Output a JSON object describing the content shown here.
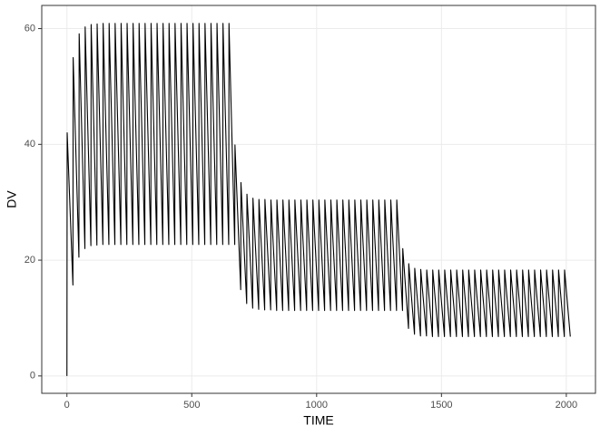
{
  "chart_data": {
    "type": "line",
    "x_label": "TIME",
    "y_label": "DV",
    "xlim": [
      -100.8,
      2116.8
    ],
    "ylim": [
      -3,
      64
    ],
    "xticks": [
      0,
      500,
      1000,
      1500,
      2000
    ],
    "yticks": [
      0,
      20,
      40,
      60
    ],
    "grid": true,
    "x": [
      0,
      1,
      24,
      25,
      48,
      49,
      72,
      73,
      96,
      97,
      120,
      121,
      144,
      145,
      168,
      169,
      192,
      193,
      216,
      217,
      240,
      241,
      264,
      265,
      288,
      289,
      312,
      313,
      336,
      337,
      360,
      361,
      384,
      385,
      408,
      409,
      432,
      433,
      456,
      457,
      480,
      481,
      504,
      505,
      528,
      529,
      552,
      553,
      576,
      577,
      600,
      601,
      624,
      625,
      648,
      649,
      672,
      673,
      696,
      697,
      720,
      721,
      744,
      745,
      768,
      769,
      792,
      793,
      816,
      817,
      840,
      841,
      864,
      865,
      888,
      889,
      912,
      913,
      936,
      937,
      960,
      961,
      984,
      985,
      1008,
      1009,
      1032,
      1033,
      1056,
      1057,
      1080,
      1081,
      1104,
      1105,
      1128,
      1129,
      1152,
      1153,
      1176,
      1177,
      1200,
      1201,
      1224,
      1225,
      1248,
      1249,
      1272,
      1273,
      1296,
      1297,
      1320,
      1321,
      1344,
      1345,
      1368,
      1369,
      1392,
      1393,
      1416,
      1417,
      1440,
      1441,
      1464,
      1465,
      1488,
      1489,
      1512,
      1513,
      1536,
      1537,
      1560,
      1561,
      1584,
      1585,
      1608,
      1609,
      1632,
      1633,
      1656,
      1657,
      1680,
      1681,
      1704,
      1705,
      1728,
      1729,
      1752,
      1753,
      1776,
      1777,
      1800,
      1801,
      1824,
      1825,
      1848,
      1849,
      1872,
      1873,
      1896,
      1897,
      1920,
      1921,
      1944,
      1945,
      1968,
      1969,
      1992,
      1993,
      2016
    ],
    "series": [
      {
        "color": "#000000",
        "values": [
          0,
          42,
          15.7,
          55,
          20.5,
          59.1,
          22,
          60.3,
          22.5,
          60.7,
          22.6,
          60.8,
          22.7,
          60.9,
          22.7,
          60.9,
          22.7,
          60.9,
          22.7,
          60.9,
          22.7,
          60.9,
          22.7,
          60.9,
          22.7,
          60.9,
          22.7,
          60.9,
          22.7,
          60.9,
          22.7,
          60.9,
          22.7,
          60.9,
          22.7,
          60.9,
          22.7,
          60.9,
          22.7,
          60.9,
          22.7,
          60.9,
          22.7,
          60.9,
          22.7,
          60.9,
          22.7,
          60.9,
          22.7,
          60.9,
          22.7,
          60.9,
          22.7,
          60.9,
          22.7,
          60.9,
          22.7,
          39.9,
          14.9,
          33.4,
          12.5,
          31.4,
          11.7,
          30.7,
          11.5,
          30.5,
          11.4,
          30.5,
          11.4,
          30.4,
          11.3,
          30.4,
          11.3,
          30.4,
          11.3,
          30.4,
          11.3,
          30.4,
          11.3,
          30.4,
          11.3,
          30.4,
          11.3,
          30.4,
          11.3,
          30.4,
          11.3,
          30.4,
          11.3,
          30.4,
          11.3,
          30.4,
          11.3,
          30.4,
          11.3,
          30.4,
          11.3,
          30.4,
          11.3,
          30.4,
          11.3,
          30.4,
          11.3,
          30.4,
          11.3,
          30.4,
          11.3,
          30.4,
          11.3,
          30.4,
          11.3,
          30.4,
          11.3,
          22,
          8.2,
          19.4,
          7.2,
          18.6,
          6.9,
          18.4,
          6.9,
          18.3,
          6.8,
          18.3,
          6.8,
          18.3,
          6.8,
          18.3,
          6.8,
          18.3,
          6.8,
          18.3,
          6.8,
          18.3,
          6.8,
          18.3,
          6.8,
          18.3,
          6.8,
          18.3,
          6.8,
          18.3,
          6.8,
          18.3,
          6.8,
          18.3,
          6.8,
          18.3,
          6.8,
          18.3,
          6.8,
          18.3,
          6.8,
          18.3,
          6.8,
          18.3,
          6.8,
          18.3,
          6.8,
          18.3,
          6.8,
          18.3,
          6.8,
          18.3,
          6.8,
          18.3,
          6.8,
          18.3,
          6.8
        ]
      }
    ]
  }
}
